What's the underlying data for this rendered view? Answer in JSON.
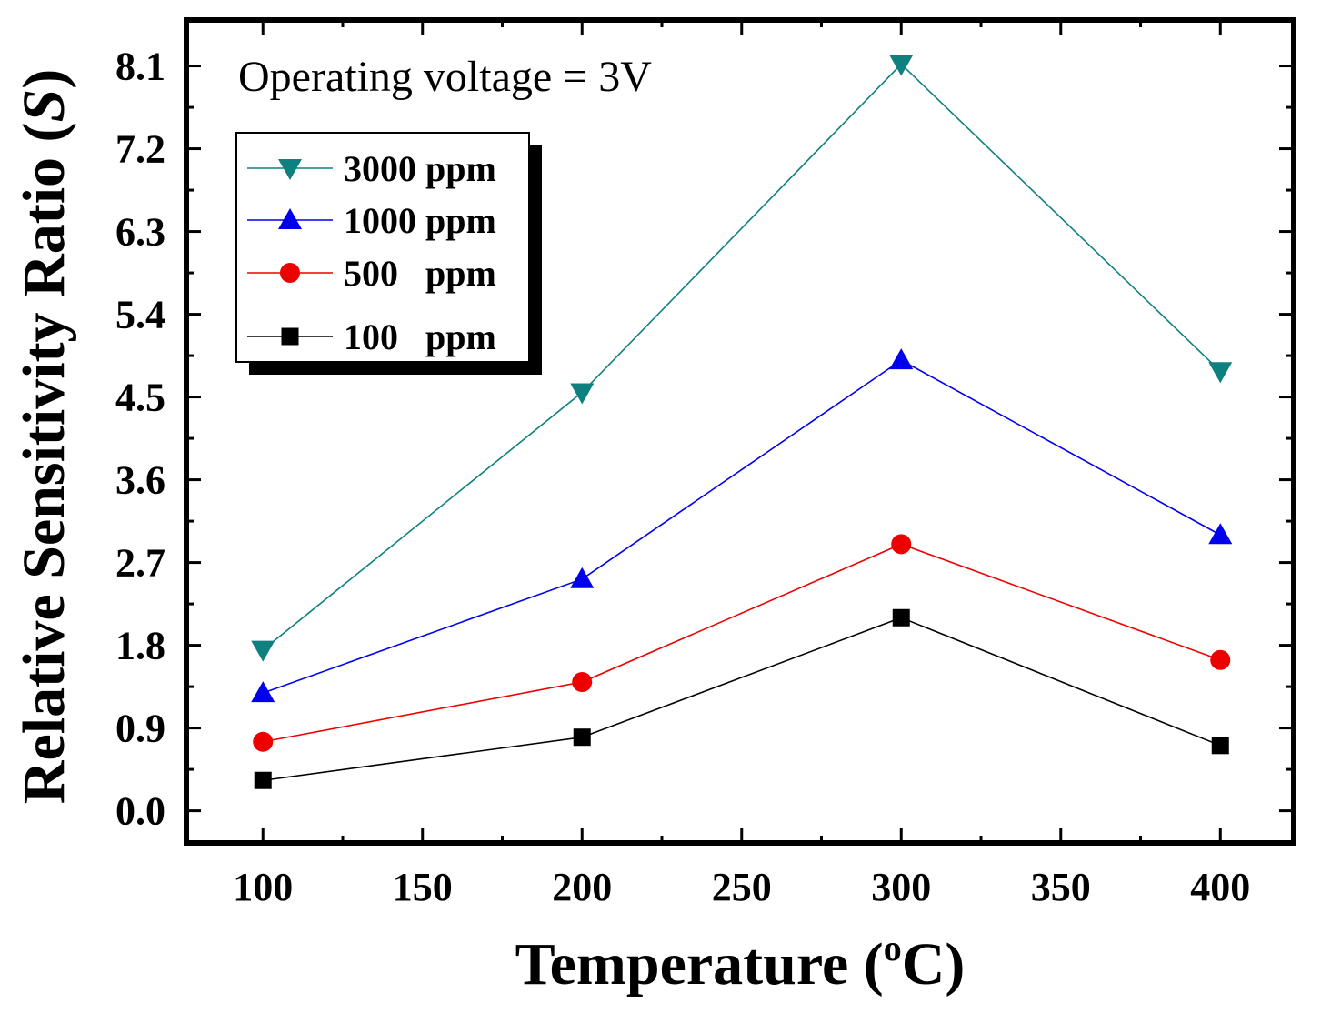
{
  "chart_data": {
    "type": "line",
    "title": "",
    "xlabel": "Temperature (",
    "xlabel_super": "o",
    "xlabel_unit": "C)",
    "ylabel": "Relative Sensitivity Ratio (",
    "ylabel_italic": "S",
    "ylabel_close": ")",
    "annotation": "Operating voltage = 3V",
    "x": [
      100,
      200,
      300,
      400
    ],
    "xlim": [
      76,
      423
    ],
    "ylim": [
      -0.35,
      8.6
    ],
    "x_ticks": [
      100,
      150,
      200,
      250,
      300,
      350,
      400
    ],
    "x_tick_labels": [
      "100",
      "150",
      "200",
      "250",
      "300",
      "350",
      "400"
    ],
    "y_ticks": [
      0.0,
      0.9,
      1.8,
      2.7,
      3.6,
      4.5,
      5.4,
      6.3,
      7.2,
      8.1
    ],
    "y_tick_labels": [
      "0.0",
      "0.9",
      "1.8",
      "2.7",
      "3.6",
      "4.5",
      "5.4",
      "6.3",
      "7.2",
      "8.1"
    ],
    "grid": false,
    "legend_position": "top-left",
    "series": [
      {
        "name": "3000 ppm",
        "values": [
          1.75,
          4.55,
          8.12,
          4.78
        ],
        "color": "#0f8080",
        "marker": "triangle-down"
      },
      {
        "name": "1000 ppm",
        "values": [
          1.28,
          2.52,
          4.9,
          3.0
        ],
        "color": "#0000ee",
        "marker": "triangle-up"
      },
      {
        "name": "500   ppm",
        "values": [
          0.75,
          1.4,
          2.9,
          1.64
        ],
        "color": "#ee0000",
        "marker": "circle"
      },
      {
        "name": "100   ppm",
        "values": [
          0.33,
          0.8,
          2.1,
          0.71
        ],
        "color": "#000000",
        "marker": "square"
      }
    ]
  }
}
